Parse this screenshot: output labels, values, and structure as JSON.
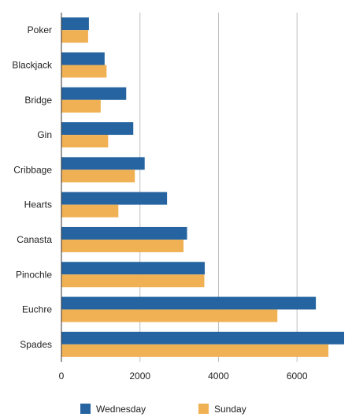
{
  "chart_data": {
    "type": "bar",
    "orientation": "horizontal",
    "categories": [
      "Poker",
      "Blackjack",
      "Bridge",
      "Gin",
      "Cribbage",
      "Hearts",
      "Canasta",
      "Pinochle",
      "Euchre",
      "Spades"
    ],
    "series": [
      {
        "name": "Wednesday",
        "color": "#2564a0",
        "values": [
          700,
          1100,
          1650,
          1830,
          2120,
          2690,
          3200,
          3650,
          6480,
          7200
        ]
      },
      {
        "name": "Sunday",
        "color": "#f0b154",
        "values": [
          680,
          1150,
          1000,
          1190,
          1870,
          1450,
          3110,
          3640,
          5500,
          6800
        ]
      }
    ],
    "x_ticks": [
      0,
      2000,
      4000,
      6000
    ],
    "xlim": [
      0,
      7200
    ],
    "grid": "vertical",
    "legend": "bottom",
    "title": "",
    "xlabel": "",
    "ylabel": ""
  }
}
